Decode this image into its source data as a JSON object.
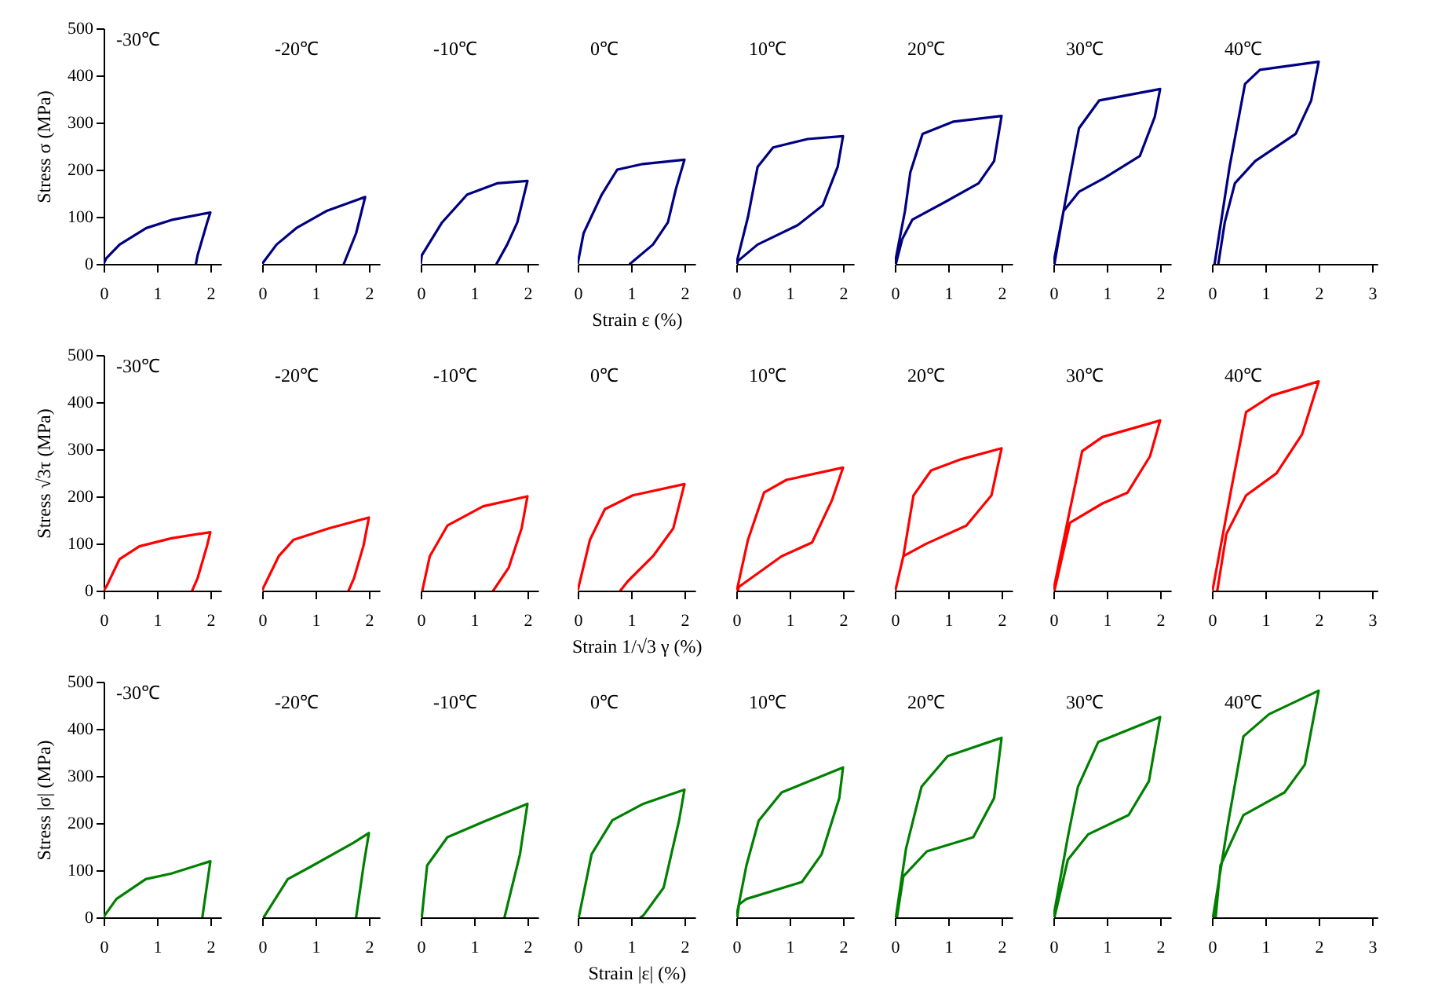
{
  "chart_data": [
    {
      "type": "line",
      "title": "-30℃",
      "ylabel": "Stress σ (MPa)",
      "xlim": [
        0,
        2.2
      ],
      "xticks": [
        0,
        1,
        2
      ],
      "ylim": [
        0,
        500
      ],
      "yticks": [
        0,
        100,
        200,
        300,
        400,
        500
      ],
      "color": "#000080",
      "x": [
        0,
        0.05,
        0.3,
        0.8,
        1.3,
        2,
        1.94,
        1.76,
        1.73
      ],
      "values": [
        0,
        12,
        41,
        76,
        94,
        109,
        88,
        18,
        0
      ]
    },
    {
      "type": "line",
      "title": "-20℃",
      "xlim": [
        0,
        2.2
      ],
      "xticks": [
        0,
        1,
        2
      ],
      "ylim": [
        0,
        500
      ],
      "tick_labels": "x",
      "color": "#000080",
      "x": [
        0,
        0.27,
        0.64,
        1.2,
        1.93,
        1.76,
        1.53
      ],
      "values": [
        0,
        41,
        76,
        112,
        142,
        65,
        0
      ]
    },
    {
      "type": "line",
      "title": "-10℃",
      "xlim": [
        0,
        2.2
      ],
      "xticks": [
        0,
        1,
        2
      ],
      "ylim": [
        0,
        500
      ],
      "tick_labels": "x",
      "color": "#000080",
      "x": [
        0,
        0.02,
        0.4,
        0.87,
        1.43,
        2,
        1.81,
        1.62,
        1.42
      ],
      "values": [
        0,
        18,
        88,
        147,
        171,
        176,
        88,
        41,
        0
      ]
    },
    {
      "type": "line",
      "title": "0℃",
      "xlabel": "Strain ε (%)",
      "xlim": [
        0,
        2.2
      ],
      "xticks": [
        0,
        1,
        2
      ],
      "ylim": [
        0,
        500
      ],
      "tick_labels": "x",
      "color": "#000080",
      "x": [
        0,
        0.11,
        0.45,
        0.74,
        1.22,
        2,
        1.84,
        1.69,
        1.41,
        0.98
      ],
      "values": [
        0,
        65,
        147,
        200,
        212,
        221,
        159,
        88,
        41,
        0
      ]
    },
    {
      "type": "line",
      "title": "10℃",
      "xlim": [
        0,
        2.2
      ],
      "xticks": [
        0,
        1,
        2
      ],
      "ylim": [
        0,
        500
      ],
      "tick_labels": "x",
      "color": "#000080",
      "x": [
        0,
        0.22,
        0.4,
        0.69,
        1.34,
        2,
        1.9,
        1.62,
        1.15,
        0.4,
        0.03,
        0.02
      ],
      "values": [
        0,
        100,
        206,
        247,
        265,
        271,
        206,
        124,
        82,
        41,
        6,
        0
      ]
    },
    {
      "type": "line",
      "title": "20℃",
      "xlim": [
        0,
        2.2
      ],
      "xticks": [
        0,
        1,
        2
      ],
      "ylim": [
        0,
        500
      ],
      "tick_labels": "x",
      "color": "#000080",
      "x": [
        0,
        0.19,
        0.29,
        0.52,
        1.1,
        2,
        1.86,
        1.57,
        1,
        0.33,
        0.14,
        0.02
      ],
      "values": [
        0,
        112,
        194,
        276,
        302,
        314,
        218,
        171,
        135,
        94,
        53,
        0
      ]
    },
    {
      "type": "line",
      "title": "30℃",
      "xlim": [
        0,
        2.2
      ],
      "xticks": [
        0,
        1,
        2
      ],
      "ylim": [
        0,
        500
      ],
      "tick_labels": "x",
      "color": "#000080",
      "x": [
        0,
        0.19,
        0.48,
        0.86,
        2,
        1.9,
        1.62,
        0.95,
        0.48,
        0.19,
        0.02
      ],
      "values": [
        0,
        112,
        288,
        347,
        371,
        312,
        229,
        182,
        153,
        112,
        0
      ]
    },
    {
      "type": "line",
      "title": "40℃",
      "xlim": [
        0,
        3.1
      ],
      "xticks": [
        0,
        1,
        2,
        3
      ],
      "ylim": [
        0,
        500
      ],
      "tick_labels": "x",
      "color": "#000080",
      "x": [
        0.05,
        0.33,
        0.62,
        0.9,
        2,
        1.86,
        1.57,
        0.81,
        0.43,
        0.24,
        0.12
      ],
      "values": [
        0,
        206,
        382,
        412,
        429,
        347,
        276,
        218,
        171,
        88,
        0
      ]
    },
    {
      "type": "line",
      "title": "-30℃",
      "ylabel": "Stress √3τ (MPa)",
      "xlim": [
        0,
        2.2
      ],
      "xticks": [
        0,
        1,
        2
      ],
      "ylim": [
        0,
        500
      ],
      "yticks": [
        0,
        100,
        200,
        300,
        400,
        500
      ],
      "color": "#ff0000",
      "x": [
        0,
        0.05,
        0.3,
        0.67,
        1.27,
        2,
        1.94,
        1.76,
        1.66
      ],
      "values": [
        0,
        8,
        67,
        94,
        111,
        124,
        96,
        26,
        0
      ]
    },
    {
      "type": "line",
      "title": "-20℃",
      "xlim": [
        0,
        2.2
      ],
      "xticks": [
        0,
        1,
        2
      ],
      "ylim": [
        0,
        500
      ],
      "tick_labels": "x",
      "color": "#ff0000",
      "x": [
        0,
        0.03,
        0.31,
        0.59,
        1.25,
        2,
        1.9,
        1.72,
        1.62
      ],
      "values": [
        0,
        8,
        73,
        108,
        132,
        155,
        96,
        26,
        0
      ]
    },
    {
      "type": "line",
      "title": "-10℃",
      "xlim": [
        0,
        2.2
      ],
      "xticks": [
        0,
        1,
        2
      ],
      "ylim": [
        0,
        500
      ],
      "tick_labels": "x",
      "color": "#ff0000",
      "x": [
        0.03,
        0.17,
        0.5,
        1.17,
        2,
        1.89,
        1.65,
        1.36
      ],
      "values": [
        0,
        73,
        138,
        179,
        200,
        132,
        49,
        0
      ]
    },
    {
      "type": "line",
      "title": "0℃",
      "xlabel": "Strain 1/√3 γ (%)",
      "xlim": [
        0,
        2.2
      ],
      "xticks": [
        0,
        1,
        2
      ],
      "ylim": [
        0,
        500
      ],
      "tick_labels": "x",
      "color": "#ff0000",
      "x": [
        0,
        0.23,
        0.51,
        1.03,
        2,
        1.79,
        1.41,
        0.94,
        0.8
      ],
      "values": [
        0,
        108,
        173,
        202,
        226,
        132,
        73,
        20,
        0
      ]
    },
    {
      "type": "line",
      "title": "10℃",
      "xlim": [
        0,
        2.2
      ],
      "xticks": [
        0,
        1,
        2
      ],
      "ylim": [
        0,
        500
      ],
      "tick_labels": "x",
      "color": "#ff0000",
      "x": [
        0.01,
        0.22,
        0.52,
        0.94,
        2,
        1.79,
        1.42,
        0.85,
        0.05,
        0.03
      ],
      "values": [
        0,
        108,
        208,
        235,
        261,
        191,
        102,
        73,
        8,
        0
      ]
    },
    {
      "type": "line",
      "title": "20℃",
      "xlim": [
        0,
        2.2
      ],
      "xticks": [
        0,
        1,
        2
      ],
      "ylim": [
        0,
        500
      ],
      "tick_labels": "x",
      "color": "#ff0000",
      "x": [
        0.01,
        0.16,
        0.35,
        0.68,
        1.25,
        2,
        1.81,
        1.34,
        0.58,
        0.16
      ],
      "values": [
        0,
        73,
        202,
        255,
        279,
        302,
        202,
        138,
        99,
        73
      ]
    },
    {
      "type": "line",
      "title": "30℃",
      "xlim": [
        0,
        2.2
      ],
      "xticks": [
        0,
        1,
        2
      ],
      "ylim": [
        0,
        500
      ],
      "tick_labels": "x",
      "color": "#ff0000",
      "x": [
        0,
        0.26,
        0.54,
        0.92,
        2,
        1.81,
        1.39,
        0.92,
        0.31,
        0.02
      ],
      "values": [
        0,
        144,
        296,
        326,
        361,
        285,
        208,
        185,
        144,
        0
      ]
    },
    {
      "type": "line",
      "title": "40℃",
      "xlim": [
        0,
        3.1
      ],
      "xticks": [
        0,
        1,
        2,
        3
      ],
      "ylim": [
        0,
        500
      ],
      "tick_labels": "x",
      "color": "#ff0000",
      "x": [
        0.01,
        0.36,
        0.64,
        1.12,
        2,
        1.69,
        1.21,
        0.64,
        0.27,
        0.1
      ],
      "values": [
        0,
        214,
        379,
        414,
        444,
        332,
        249,
        202,
        120,
        0
      ]
    },
    {
      "type": "line",
      "title": "-30℃",
      "ylabel": "Stress |σ| (MPa)",
      "xlim": [
        0,
        2.2
      ],
      "xticks": [
        0,
        1,
        2
      ],
      "ylim": [
        0,
        500
      ],
      "yticks": [
        0,
        100,
        200,
        300,
        400,
        500
      ],
      "color": "#008000",
      "x": [
        0,
        0.02,
        0.24,
        0.79,
        1.27,
        2,
        1.96,
        1.85
      ],
      "values": [
        0,
        4,
        39,
        81,
        93,
        119,
        87,
        0
      ]
    },
    {
      "type": "line",
      "title": "-20℃",
      "xlim": [
        0,
        2.2
      ],
      "xticks": [
        0,
        1,
        2
      ],
      "ylim": [
        0,
        500
      ],
      "tick_labels": "x",
      "color": "#008000",
      "x": [
        0.03,
        0.05,
        0.48,
        0.95,
        1.71,
        2,
        1.9,
        1.76
      ],
      "values": [
        0,
        4,
        81,
        110,
        158,
        179,
        110,
        0
      ]
    },
    {
      "type": "line",
      "title": "-10℃",
      "xlim": [
        0,
        2.2
      ],
      "xticks": [
        0,
        1,
        2
      ],
      "ylim": [
        0,
        500
      ],
      "tick_labels": "x",
      "color": "#008000",
      "x": [
        0.02,
        0.12,
        0.5,
        1.18,
        2,
        1.86,
        1.57
      ],
      "values": [
        0,
        110,
        170,
        203,
        241,
        134,
        0
      ]
    },
    {
      "type": "line",
      "title": "0℃",
      "xlabel": "Strain |ε| (%)",
      "xlim": [
        0,
        2.2
      ],
      "xticks": [
        0,
        1,
        2
      ],
      "ylim": [
        0,
        500
      ],
      "tick_labels": "x",
      "color": "#008000",
      "x": [
        0.02,
        0.26,
        0.65,
        1.23,
        2,
        1.9,
        1.61,
        1.23,
        1.18
      ],
      "values": [
        0,
        134,
        206,
        241,
        271,
        206,
        63,
        4,
        0
      ]
    },
    {
      "type": "line",
      "title": "10℃",
      "xlim": [
        0,
        2.2
      ],
      "xticks": [
        0,
        1,
        2
      ],
      "ylim": [
        0,
        500
      ],
      "tick_labels": "x",
      "color": "#008000",
      "x": [
        0,
        0.19,
        0.42,
        0.85,
        2,
        1.93,
        1.6,
        1.23,
        0.19,
        0.05,
        0.02
      ],
      "values": [
        0,
        110,
        205,
        265,
        318,
        253,
        134,
        75,
        39,
        27,
        0
      ]
    },
    {
      "type": "line",
      "title": "20℃",
      "xlim": [
        0,
        2.2
      ],
      "xticks": [
        0,
        1,
        2
      ],
      "ylim": [
        0,
        500
      ],
      "tick_labels": "x",
      "color": "#008000",
      "x": [
        0.02,
        0.21,
        0.5,
        0.99,
        2,
        1.86,
        1.47,
        0.6,
        0.16,
        0.04
      ],
      "values": [
        0,
        146,
        277,
        342,
        381,
        253,
        170,
        140,
        87,
        0
      ]
    },
    {
      "type": "line",
      "title": "30℃",
      "xlim": [
        0,
        2.2
      ],
      "xticks": [
        0,
        1,
        2
      ],
      "ylim": [
        0,
        500
      ],
      "tick_labels": "x",
      "color": "#008000",
      "x": [
        0,
        0.27,
        0.46,
        0.84,
        2,
        1.79,
        1.41,
        0.65,
        0.27,
        0.02
      ],
      "values": [
        0,
        170,
        277,
        372,
        425,
        289,
        217,
        176,
        122,
        0
      ]
    },
    {
      "type": "line",
      "title": "40℃",
      "xlim": [
        0,
        3.1
      ],
      "xticks": [
        0,
        1,
        2,
        3
      ],
      "ylim": [
        0,
        500
      ],
      "tick_labels": "x",
      "color": "#008000",
      "x": [
        0.02,
        0.31,
        0.59,
        1.07,
        2,
        1.74,
        1.36,
        0.59,
        0.16,
        0.07
      ],
      "values": [
        0,
        205,
        384,
        431,
        481,
        324,
        265,
        217,
        110,
        0
      ]
    }
  ]
}
